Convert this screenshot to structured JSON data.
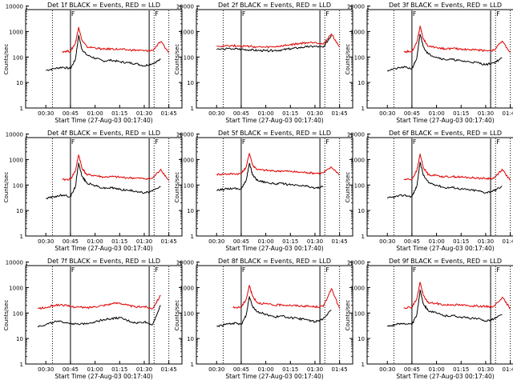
{
  "figure": {
    "colors": {
      "events": "#000000",
      "lld": "#e00000",
      "axes": "#000000",
      "background": "#ffffff"
    },
    "common": {
      "ylabel": "Counts/sec",
      "xlabel": "Start Time (27-Aug-03 00:17:40)",
      "xticks": [
        "00:30",
        "00:45",
        "01:00",
        "01:15",
        "01:30",
        "01:45"
      ],
      "yticks": [
        "1",
        "10",
        "100",
        "1000",
        "10000"
      ],
      "marker": "F"
    }
  },
  "chart_data": [
    {
      "type": "line",
      "title": "Det 1f BLACK = Events, RED = LLD",
      "xlabel": "Start Time (27-Aug-03 00:17:40)",
      "ylabel": "Counts/sec",
      "y_scale": "log",
      "ylim": [
        1,
        12000
      ],
      "xlim": [
        "00:17:40",
        "01:53"
      ],
      "x": [
        "00:30",
        "00:35",
        "00:40",
        "00:45",
        "00:48",
        "00:50",
        "00:52",
        "00:55",
        "01:00",
        "01:05",
        "01:10",
        "01:15",
        "01:20",
        "01:25",
        "01:30",
        "01:35",
        "01:40",
        "01:45"
      ],
      "series": [
        {
          "name": "Events",
          "values": [
            30,
            35,
            40,
            35,
            80,
            700,
            200,
            120,
            90,
            70,
            75,
            65,
            60,
            55,
            45,
            55,
            80,
            null
          ]
        },
        {
          "name": "LLD",
          "values": [
            null,
            null,
            165,
            170,
            350,
            1500,
            450,
            250,
            230,
            200,
            210,
            200,
            190,
            185,
            175,
            180,
            400,
            150
          ]
        }
      ]
    },
    {
      "type": "line",
      "title": "Det 2f BLACK = Events, RED = LLD",
      "xlabel": "Start Time (27-Aug-03 00:17:40)",
      "ylabel": "Counts/sec",
      "y_scale": "log",
      "ylim": [
        1,
        12000
      ],
      "xlim": [
        "00:17:40",
        "01:53"
      ],
      "x": [
        "00:30",
        "00:40",
        "00:45",
        "00:50",
        "00:55",
        "01:00",
        "01:05",
        "01:10",
        "01:15",
        "01:20",
        "01:25",
        "01:30",
        "01:35",
        "01:40",
        "01:45"
      ],
      "series": [
        {
          "name": "Events",
          "values": [
            200,
            210,
            200,
            190,
            180,
            175,
            180,
            190,
            210,
            230,
            250,
            260,
            240,
            700,
            null
          ]
        },
        {
          "name": "LLD",
          "values": [
            270,
            280,
            270,
            260,
            245,
            240,
            250,
            270,
            300,
            330,
            360,
            380,
            320,
            800,
            250
          ]
        }
      ]
    },
    {
      "type": "line",
      "title": "Det 3f BLACK = Events, RED = LLD",
      "xlabel": "Start Time (27-Aug-03 00:17:40)",
      "ylabel": "Counts/sec",
      "y_scale": "log",
      "ylim": [
        1,
        12000
      ],
      "xlim": [
        "00:17:40",
        "01:53"
      ],
      "x": [
        "00:30",
        "00:35",
        "00:40",
        "00:45",
        "00:48",
        "00:50",
        "00:52",
        "00:55",
        "01:00",
        "01:05",
        "01:10",
        "01:15",
        "01:20",
        "01:25",
        "01:30",
        "01:35",
        "01:40",
        "01:45"
      ],
      "series": [
        {
          "name": "Events",
          "values": [
            30,
            35,
            40,
            35,
            90,
            800,
            250,
            130,
            100,
            80,
            80,
            70,
            65,
            60,
            50,
            60,
            90,
            null
          ]
        },
        {
          "name": "LLD",
          "values": [
            null,
            null,
            160,
            170,
            380,
            1600,
            500,
            260,
            240,
            210,
            215,
            205,
            195,
            190,
            180,
            185,
            420,
            150
          ]
        }
      ]
    },
    {
      "type": "line",
      "title": "Det 4f BLACK = Events, RED = LLD",
      "xlabel": "Start Time (27-Aug-03 00:17:40)",
      "ylabel": "Counts/sec",
      "y_scale": "log",
      "ylim": [
        1,
        12000
      ],
      "xlim": [
        "00:17:40",
        "01:53"
      ],
      "x": [
        "00:30",
        "00:35",
        "00:40",
        "00:45",
        "00:48",
        "00:50",
        "00:52",
        "00:55",
        "01:00",
        "01:05",
        "01:10",
        "01:15",
        "01:20",
        "01:25",
        "01:30",
        "01:35",
        "01:40",
        "01:45"
      ],
      "series": [
        {
          "name": "Events",
          "values": [
            30,
            35,
            40,
            35,
            85,
            750,
            220,
            120,
            95,
            75,
            78,
            68,
            62,
            58,
            48,
            58,
            85,
            null
          ]
        },
        {
          "name": "LLD",
          "values": [
            null,
            null,
            160,
            170,
            360,
            1550,
            470,
            250,
            235,
            205,
            212,
            202,
            192,
            187,
            177,
            182,
            410,
            150
          ]
        }
      ]
    },
    {
      "type": "line",
      "title": "Det 5f BLACK = Events, RED = LLD",
      "xlabel": "Start Time (27-Aug-03 00:17:40)",
      "ylabel": "Counts/sec",
      "y_scale": "log",
      "ylim": [
        1,
        12000
      ],
      "xlim": [
        "00:17:40",
        "01:53"
      ],
      "x": [
        "00:30",
        "00:35",
        "00:40",
        "00:45",
        "00:48",
        "00:50",
        "00:52",
        "00:55",
        "01:00",
        "01:05",
        "01:10",
        "01:15",
        "01:20",
        "01:25",
        "01:30",
        "01:35",
        "01:40",
        "01:45"
      ],
      "series": [
        {
          "name": "Events",
          "values": [
            60,
            70,
            75,
            70,
            150,
            700,
            250,
            150,
            130,
            110,
            115,
            100,
            95,
            90,
            75,
            85,
            null,
            null
          ]
        },
        {
          "name": "LLD",
          "values": [
            260,
            270,
            275,
            280,
            500,
            1800,
            600,
            400,
            380,
            350,
            360,
            340,
            320,
            310,
            290,
            300,
            500,
            260
          ]
        }
      ]
    },
    {
      "type": "line",
      "title": "Det 6f BLACK = Events, RED = LLD",
      "xlabel": "Start Time (27-Aug-03 00:17:40)",
      "ylabel": "Counts/sec",
      "y_scale": "log",
      "ylim": [
        1,
        12000
      ],
      "xlim": [
        "00:17:40",
        "01:53"
      ],
      "x": [
        "00:30",
        "00:35",
        "00:40",
        "00:45",
        "00:48",
        "00:50",
        "00:52",
        "00:55",
        "01:00",
        "01:05",
        "01:10",
        "01:15",
        "01:20",
        "01:25",
        "01:30",
        "01:35",
        "01:40",
        "01:45"
      ],
      "series": [
        {
          "name": "Events",
          "values": [
            30,
            35,
            40,
            35,
            90,
            800,
            240,
            125,
            100,
            78,
            80,
            70,
            64,
            60,
            50,
            60,
            88,
            null
          ]
        },
        {
          "name": "LLD",
          "values": [
            null,
            null,
            165,
            170,
            370,
            1600,
            480,
            255,
            238,
            208,
            214,
            204,
            194,
            189,
            179,
            184,
            415,
            150
          ]
        }
      ]
    },
    {
      "type": "line",
      "title": "Det 7f BLACK = Events, RED = LLD",
      "xlabel": "Start Time (27-Aug-03 00:17:40)",
      "ylabel": "Counts/sec",
      "y_scale": "log",
      "ylim": [
        1,
        12000
      ],
      "xlim": [
        "00:17:40",
        "01:53"
      ],
      "x": [
        "00:25",
        "00:30",
        "00:35",
        "00:40",
        "00:45",
        "00:50",
        "00:55",
        "01:00",
        "01:05",
        "01:10",
        "01:15",
        "01:20",
        "01:25",
        "01:30",
        "01:35",
        "01:40",
        "01:45"
      ],
      "series": [
        {
          "name": "Events",
          "values": [
            30,
            35,
            45,
            45,
            40,
            35,
            40,
            45,
            55,
            60,
            65,
            50,
            40,
            45,
            35,
            200,
            null
          ]
        },
        {
          "name": "LLD",
          "values": [
            150,
            160,
            200,
            210,
            180,
            170,
            160,
            180,
            200,
            230,
            250,
            200,
            170,
            180,
            150,
            500,
            null
          ]
        }
      ]
    },
    {
      "type": "line",
      "title": "Det 8f BLACK = Events, RED = LLD",
      "xlabel": "Start Time (27-Aug-03 00:17:40)",
      "ylabel": "Counts/sec",
      "y_scale": "log",
      "ylim": [
        1,
        12000
      ],
      "xlim": [
        "00:17:40",
        "01:53"
      ],
      "x": [
        "00:30",
        "00:35",
        "00:40",
        "00:45",
        "00:48",
        "00:50",
        "00:52",
        "00:55",
        "01:00",
        "01:05",
        "01:10",
        "01:15",
        "01:20",
        "01:25",
        "01:30",
        "01:35",
        "01:40",
        "01:45"
      ],
      "series": [
        {
          "name": "Events",
          "values": [
            30,
            35,
            40,
            35,
            80,
            450,
            180,
            110,
            90,
            70,
            75,
            65,
            60,
            55,
            45,
            60,
            130,
            null
          ]
        },
        {
          "name": "LLD",
          "values": [
            null,
            null,
            160,
            170,
            340,
            1200,
            450,
            250,
            230,
            200,
            210,
            200,
            190,
            185,
            175,
            180,
            900,
            150
          ]
        }
      ]
    },
    {
      "type": "line",
      "title": "Det 9f BLACK = Events, RED = LLD",
      "xlabel": "Start Time (27-Aug-03 00:17:40)",
      "ylabel": "Counts/sec",
      "y_scale": "log",
      "ylim": [
        1,
        12000
      ],
      "xlim": [
        "00:17:40",
        "01:53"
      ],
      "x": [
        "00:30",
        "00:35",
        "00:40",
        "00:45",
        "00:48",
        "00:50",
        "00:52",
        "00:55",
        "01:00",
        "01:05",
        "01:10",
        "01:15",
        "01:20",
        "01:25",
        "01:30",
        "01:35",
        "01:40",
        "01:45"
      ],
      "series": [
        {
          "name": "Events",
          "values": [
            30,
            35,
            40,
            35,
            85,
            780,
            230,
            125,
            98,
            77,
            79,
            69,
            63,
            59,
            49,
            59,
            87,
            null
          ]
        },
        {
          "name": "LLD",
          "values": [
            null,
            null,
            162,
            170,
            365,
            1580,
            475,
            252,
            236,
            206,
            213,
            203,
            193,
            188,
            178,
            183,
            412,
            150
          ]
        }
      ]
    }
  ]
}
